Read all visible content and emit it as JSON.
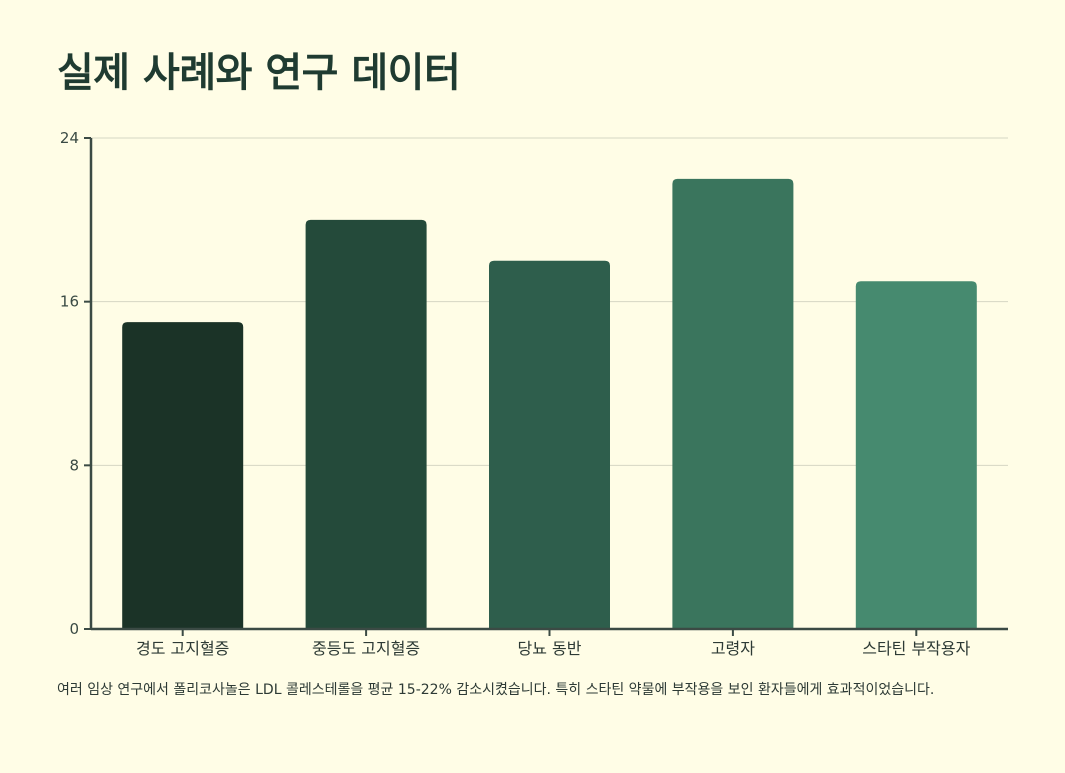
{
  "page": {
    "title": "실제 사례와 연구 데이터",
    "caption": "여러 임상 연구에서 폴리코사놀은 LDL 콜레스테롤을 평균 15-22% 감소시켰습니다. 특히 스타틴 약물에 부작용을 보인 환자들에게 효과적이었습니다."
  },
  "chart_data": {
    "type": "bar",
    "categories": [
      "경도 고지혈증",
      "중등도 고지혈증",
      "당뇨 동반",
      "고령자",
      "스타틴 부작용자"
    ],
    "values": [
      15,
      20,
      18,
      22,
      17
    ],
    "colors": [
      "#1b3327",
      "#244a3a",
      "#2e5e4c",
      "#3a755d",
      "#468a6f"
    ],
    "ylim": [
      0,
      24
    ],
    "yticks": [
      0,
      8,
      16,
      24
    ],
    "grid": true,
    "xlabel": "",
    "ylabel": ""
  }
}
